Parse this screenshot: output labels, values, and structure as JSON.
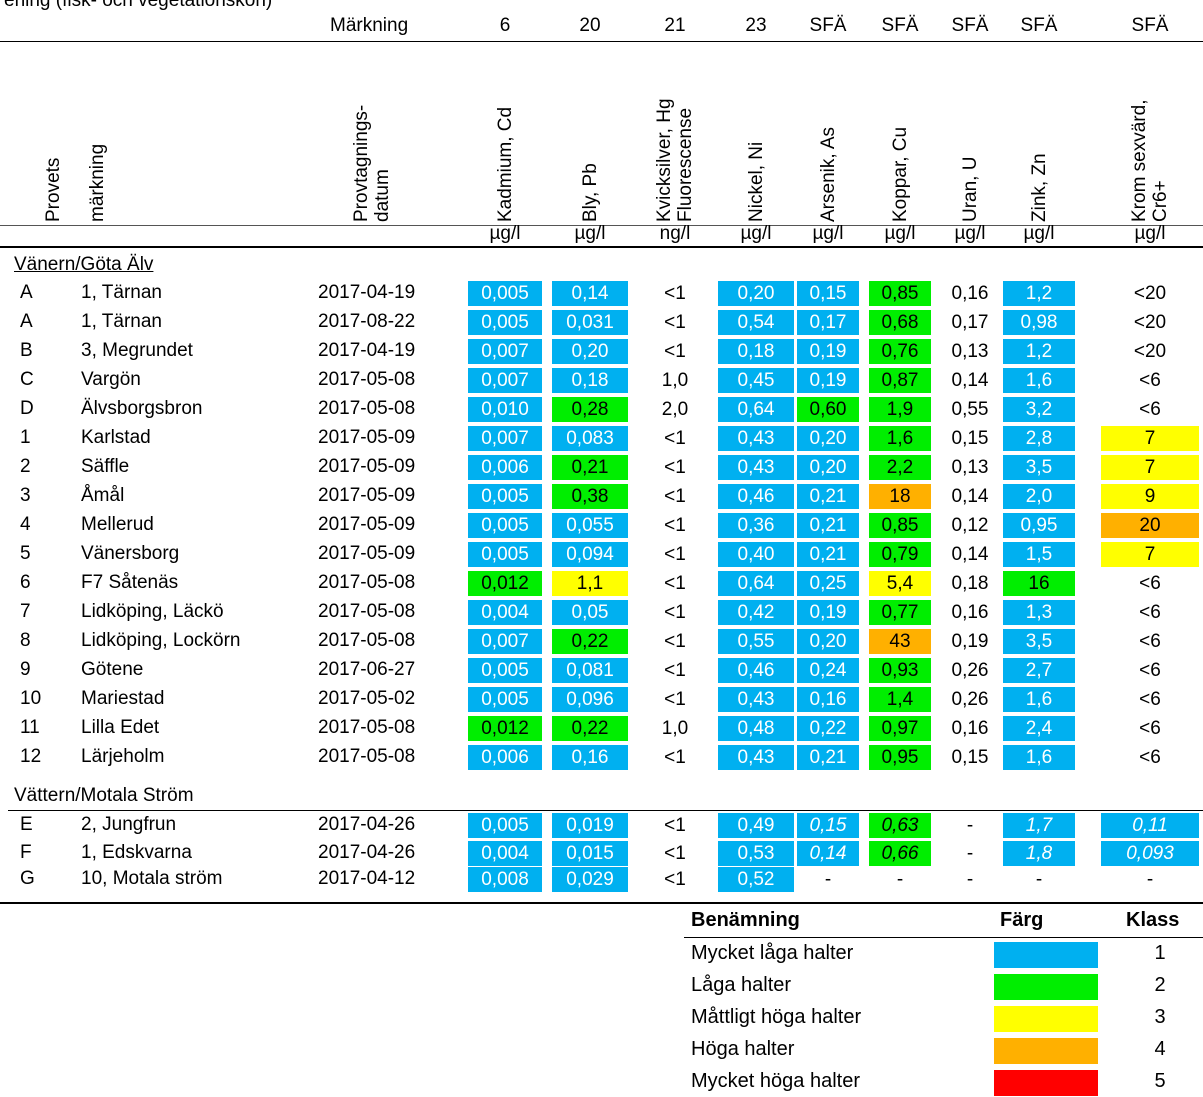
{
  "top_text": "ening (fisk- och vegetationskon)",
  "header_row": {
    "label": "Märkning",
    "codes": [
      "6",
      "20",
      "21",
      "23",
      "SFÄ",
      "SFÄ",
      "SFÄ",
      "SFÄ",
      "SFÄ"
    ]
  },
  "vertical_headers": {
    "provets": "Provets",
    "markning": "märkning",
    "datum": [
      "Provtagnings-",
      "datum"
    ],
    "cols": [
      [
        "Kadmium, Cd"
      ],
      [
        "Bly, Pb"
      ],
      [
        "Kvicksilver, Hg",
        "Fluorescense"
      ],
      [
        "Nickel, Ni"
      ],
      [
        "Arsenik, As"
      ],
      [
        "Koppar, Cu"
      ],
      [
        "Uran, U"
      ],
      [
        "Zink, Zn"
      ],
      [
        "Krom sexvärd,",
        "Cr6+"
      ]
    ]
  },
  "units": [
    "µg/l",
    "µg/l",
    "ng/l",
    "µg/l",
    "µg/l",
    "µg/l",
    "µg/l",
    "µg/l",
    "µg/l"
  ],
  "section1": "Vänern/Göta Älv",
  "section2": "Vättern/Motala Ström",
  "rows": [
    {
      "id": "A",
      "name": "1, Tärnan",
      "date": "2017-04-19",
      "v": [
        "0,005",
        "0,14",
        "<1",
        "0,20",
        "0,15",
        "0,85",
        "0,16",
        "1,2",
        "<20"
      ],
      "c": [
        "b",
        "b",
        "",
        "b",
        "b",
        "g",
        "",
        "b",
        ""
      ]
    },
    {
      "id": "A",
      "name": "1, Tärnan",
      "date": "2017-08-22",
      "v": [
        "0,005",
        "0,031",
        "<1",
        "0,54",
        "0,17",
        "0,68",
        "0,17",
        "0,98",
        "<20"
      ],
      "c": [
        "b",
        "b",
        "",
        "b",
        "b",
        "g",
        "",
        "b",
        ""
      ]
    },
    {
      "id": "B",
      "name": "3, Megrundet",
      "date": "2017-04-19",
      "v": [
        "0,007",
        "0,20",
        "<1",
        "0,18",
        "0,19",
        "0,76",
        "0,13",
        "1,2",
        "<20"
      ],
      "c": [
        "b",
        "b",
        "",
        "b",
        "b",
        "g",
        "",
        "b",
        ""
      ]
    },
    {
      "id": "C",
      "name": "Vargön",
      "date": "2017-05-08",
      "v": [
        "0,007",
        "0,18",
        "1,0",
        "0,45",
        "0,19",
        "0,87",
        "0,14",
        "1,6",
        "<6"
      ],
      "c": [
        "b",
        "b",
        "",
        "b",
        "b",
        "g",
        "",
        "b",
        ""
      ]
    },
    {
      "id": "D",
      "name": "Älvsborgsbron",
      "date": "2017-05-08",
      "v": [
        "0,010",
        "0,28",
        "2,0",
        "0,64",
        "0,60",
        "1,9",
        "0,55",
        "3,2",
        "<6"
      ],
      "c": [
        "b",
        "g",
        "",
        "b",
        "g",
        "g",
        "",
        "b",
        ""
      ]
    },
    {
      "id": "1",
      "name": "Karlstad",
      "date": "2017-05-09",
      "v": [
        "0,007",
        "0,083",
        "<1",
        "0,43",
        "0,20",
        "1,6",
        "0,15",
        "2,8",
        "7"
      ],
      "c": [
        "b",
        "b",
        "",
        "b",
        "b",
        "g",
        "",
        "b",
        "y"
      ]
    },
    {
      "id": "2",
      "name": "Säffle",
      "date": "2017-05-09",
      "v": [
        "0,006",
        "0,21",
        "<1",
        "0,43",
        "0,20",
        "2,2",
        "0,13",
        "3,5",
        "7"
      ],
      "c": [
        "b",
        "g",
        "",
        "b",
        "b",
        "g",
        "",
        "b",
        "y"
      ]
    },
    {
      "id": "3",
      "name": "Åmål",
      "date": "2017-05-09",
      "v": [
        "0,005",
        "0,38",
        "<1",
        "0,46",
        "0,21",
        "18",
        "0,14",
        "2,0",
        "9"
      ],
      "c": [
        "b",
        "g",
        "",
        "b",
        "b",
        "o",
        "",
        "b",
        "y"
      ]
    },
    {
      "id": "4",
      "name": "Mellerud",
      "date": "2017-05-09",
      "v": [
        "0,005",
        "0,055",
        "<1",
        "0,36",
        "0,21",
        "0,85",
        "0,12",
        "0,95",
        "20"
      ],
      "c": [
        "b",
        "b",
        "",
        "b",
        "b",
        "g",
        "",
        "b",
        "o"
      ]
    },
    {
      "id": "5",
      "name": "Vänersborg",
      "date": "2017-05-09",
      "v": [
        "0,005",
        "0,094",
        "<1",
        "0,40",
        "0,21",
        "0,79",
        "0,14",
        "1,5",
        "7"
      ],
      "c": [
        "b",
        "b",
        "",
        "b",
        "b",
        "g",
        "",
        "b",
        "y"
      ]
    },
    {
      "id": "6",
      "name": "F7 Såtenäs",
      "date": "2017-05-08",
      "v": [
        "0,012",
        "1,1",
        "<1",
        "0,64",
        "0,25",
        "5,4",
        "0,18",
        "16",
        "<6"
      ],
      "c": [
        "g",
        "y",
        "",
        "b",
        "b",
        "y",
        "",
        "g",
        ""
      ]
    },
    {
      "id": "7",
      "name": "Lidköping, Läckö",
      "date": "2017-05-08",
      "v": [
        "0,004",
        "0,05",
        "<1",
        "0,42",
        "0,19",
        "0,77",
        "0,16",
        "1,3",
        "<6"
      ],
      "c": [
        "b",
        "b",
        "",
        "b",
        "b",
        "g",
        "",
        "b",
        ""
      ]
    },
    {
      "id": "8",
      "name": "Lidköping, Lockörn",
      "date": "2017-05-08",
      "v": [
        "0,007",
        "0,22",
        "<1",
        "0,55",
        "0,20",
        "43",
        "0,19",
        "3,5",
        "<6"
      ],
      "c": [
        "b",
        "g",
        "",
        "b",
        "b",
        "o",
        "",
        "b",
        ""
      ]
    },
    {
      "id": "9",
      "name": "Götene",
      "date": "2017-06-27",
      "v": [
        "0,005",
        "0,081",
        "<1",
        "0,46",
        "0,24",
        "0,93",
        "0,26",
        "2,7",
        "<6"
      ],
      "c": [
        "b",
        "b",
        "",
        "b",
        "b",
        "g",
        "",
        "b",
        ""
      ]
    },
    {
      "id": "10",
      "name": "Mariestad",
      "date": "2017-05-02",
      "v": [
        "0,005",
        "0,096",
        "<1",
        "0,43",
        "0,16",
        "1,4",
        "0,26",
        "1,6",
        "<6"
      ],
      "c": [
        "b",
        "b",
        "",
        "b",
        "b",
        "g",
        "",
        "b",
        ""
      ]
    },
    {
      "id": "11",
      "name": "Lilla Edet",
      "date": "2017-05-08",
      "v": [
        "0,012",
        "0,22",
        "1,0",
        "0,48",
        "0,22",
        "0,97",
        "0,16",
        "2,4",
        "<6"
      ],
      "c": [
        "g",
        "g",
        "",
        "b",
        "b",
        "g",
        "",
        "b",
        ""
      ]
    },
    {
      "id": "12",
      "name": "Lärjeholm",
      "date": "2017-05-08",
      "v": [
        "0,006",
        "0,16",
        "<1",
        "0,43",
        "0,21",
        "0,95",
        "0,15",
        "1,6",
        "<6"
      ],
      "c": [
        "b",
        "b",
        "",
        "b",
        "b",
        "g",
        "",
        "b",
        ""
      ]
    },
    {
      "id": "E",
      "name": "2, Jungfrun",
      "date": "2017-04-26",
      "v": [
        "0,005",
        "0,019",
        "<1",
        "0,49",
        "0,15",
        "0,63",
        "-",
        "1,7",
        "0,11"
      ],
      "c": [
        "b",
        "b",
        "",
        "b",
        "bi",
        "gi",
        "",
        "bi",
        "bi"
      ]
    },
    {
      "id": "F",
      "name": "1, Edskvarna",
      "date": "2017-04-26",
      "v": [
        "0,004",
        "0,015",
        "<1",
        "0,53",
        "0,14",
        "0,66",
        "-",
        "1,8",
        "0,093"
      ],
      "c": [
        "b",
        "b",
        "",
        "b",
        "bi",
        "gi",
        "",
        "bi",
        "bi"
      ]
    },
    {
      "id": "G",
      "name": "10, Motala ström",
      "date": "2017-04-12",
      "v": [
        "0,008",
        "0,029",
        "<1",
        "0,52",
        "-",
        "-",
        "-",
        "-",
        "-"
      ],
      "c": [
        "b",
        "b",
        "",
        "b",
        "",
        "",
        "",
        "",
        ""
      ]
    }
  ],
  "legend": {
    "headers": {
      "name": "Benämning",
      "color": "Färg",
      "class": "Klass"
    },
    "items": [
      {
        "name": "Mycket låga halter",
        "color": "#00b0f0",
        "class": "1"
      },
      {
        "name": "Låga halter",
        "color": "#00ee00",
        "class": "2"
      },
      {
        "name": "Måttligt höga halter",
        "color": "#ffff00",
        "class": "3"
      },
      {
        "name": "Höga halter",
        "color": "#ffb000",
        "class": "4"
      },
      {
        "name": "Mycket höga halter",
        "color": "#ff0000",
        "class": "5"
      }
    ]
  }
}
